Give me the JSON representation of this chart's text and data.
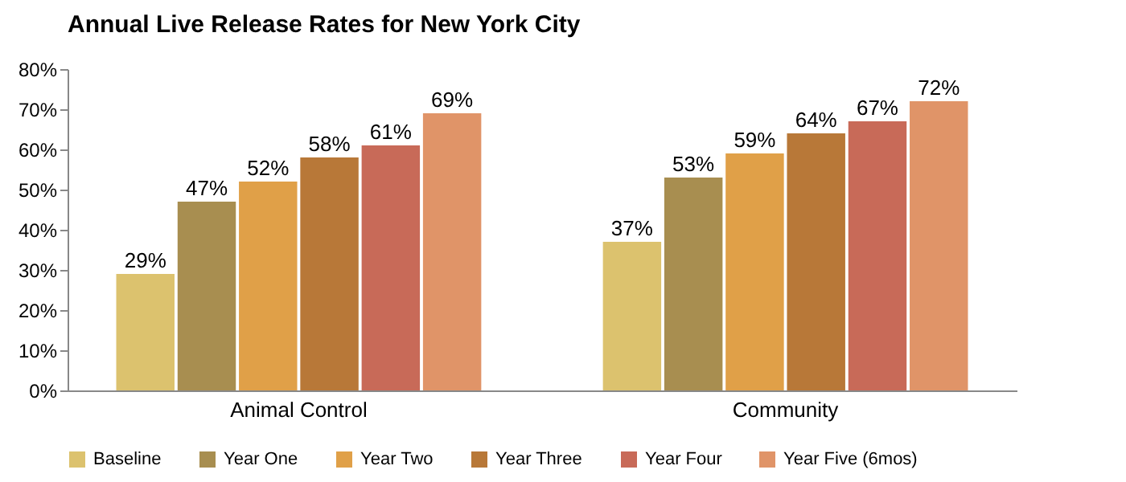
{
  "chart_data": {
    "type": "bar",
    "title": "Annual Live Release Rates for New York City",
    "categories": [
      "Animal Control",
      "Community"
    ],
    "series": [
      {
        "name": "Baseline",
        "color": "#dcc26e",
        "values": [
          29,
          37
        ],
        "value_labels": [
          "29%",
          "37%"
        ]
      },
      {
        "name": "Year One",
        "color": "#a88e50",
        "values": [
          47,
          53
        ],
        "value_labels": [
          "47%",
          "53%"
        ]
      },
      {
        "name": "Year Two",
        "color": "#e0a048",
        "values": [
          52,
          59
        ],
        "value_labels": [
          "52%",
          "59%"
        ]
      },
      {
        "name": "Year Three",
        "color": "#b87838",
        "values": [
          58,
          64
        ],
        "value_labels": [
          "58%",
          "64%"
        ]
      },
      {
        "name": "Year Four",
        "color": "#c86a58",
        "values": [
          61,
          67
        ],
        "value_labels": [
          "61%",
          "67%"
        ]
      },
      {
        "name": "Year Five (6mos)",
        "color": "#e09468",
        "values": [
          69,
          72
        ],
        "value_labels": [
          "69%",
          "72%"
        ]
      }
    ],
    "ylim": [
      0,
      80
    ],
    "yticks": [
      {
        "value": 0,
        "label": "0%"
      },
      {
        "value": 10,
        "label": "10%"
      },
      {
        "value": 20,
        "label": "20%"
      },
      {
        "value": 30,
        "label": "30%"
      },
      {
        "value": 40,
        "label": "40%"
      },
      {
        "value": 50,
        "label": "50%"
      },
      {
        "value": 60,
        "label": "60%"
      },
      {
        "value": 70,
        "label": "70%"
      },
      {
        "value": 80,
        "label": "80%"
      }
    ],
    "grid": false,
    "legend": "bottom"
  }
}
